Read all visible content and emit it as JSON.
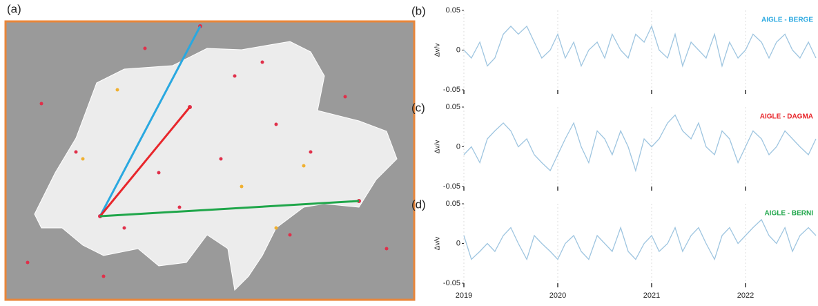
{
  "map": {
    "label": "(a)"
  },
  "chart_data": [
    {
      "type": "line",
      "panel": "(b)",
      "ylabel": "Δv/v",
      "ylim": [
        -0.05,
        0.05
      ],
      "yticks": [
        0.05,
        0,
        -0.05
      ],
      "xlim": [
        2019,
        2022.75
      ],
      "xticks": [
        2019,
        2020,
        2021,
        2022
      ],
      "xtick_labels": false,
      "grid": true,
      "x": [
        2019,
        2019.08,
        2019.17,
        2019.25,
        2019.33,
        2019.42,
        2019.5,
        2019.58,
        2019.67,
        2019.75,
        2019.83,
        2019.92,
        2020,
        2020.08,
        2020.17,
        2020.25,
        2020.33,
        2020.42,
        2020.5,
        2020.58,
        2020.67,
        2020.75,
        2020.83,
        2020.92,
        2021,
        2021.08,
        2021.17,
        2021.25,
        2021.33,
        2021.42,
        2021.5,
        2021.58,
        2021.67,
        2021.75,
        2021.83,
        2021.92,
        2022,
        2022.08,
        2022.17,
        2022.25,
        2022.33,
        2022.42,
        2022.5,
        2022.58,
        2022.67,
        2022.75
      ],
      "series": [
        {
          "name": "AIGLE - BERGE",
          "color": "#9ec5e0",
          "label_color": "#29a8e0",
          "values": [
            0.0,
            -0.01,
            0.01,
            -0.02,
            -0.01,
            0.02,
            0.03,
            0.02,
            0.03,
            0.01,
            -0.01,
            0.0,
            0.02,
            -0.01,
            0.01,
            -0.02,
            0.0,
            0.01,
            -0.01,
            0.02,
            0.0,
            -0.01,
            0.02,
            0.01,
            0.03,
            0.0,
            -0.01,
            0.02,
            -0.02,
            0.01,
            0.0,
            -0.01,
            0.02,
            -0.02,
            0.01,
            -0.01,
            0.0,
            0.02,
            0.01,
            -0.01,
            0.01,
            0.02,
            0.0,
            -0.01,
            0.01,
            -0.01
          ]
        }
      ]
    },
    {
      "type": "line",
      "panel": "(c)",
      "ylabel": "Δv/v",
      "ylim": [
        -0.05,
        0.05
      ],
      "yticks": [
        0.05,
        0,
        -0.05
      ],
      "xlim": [
        2019,
        2022.75
      ],
      "xticks": [
        2019,
        2020,
        2021,
        2022
      ],
      "xtick_labels": false,
      "grid": true,
      "x": [
        2019,
        2019.08,
        2019.17,
        2019.25,
        2019.33,
        2019.42,
        2019.5,
        2019.58,
        2019.67,
        2019.75,
        2019.83,
        2019.92,
        2020,
        2020.08,
        2020.17,
        2020.25,
        2020.33,
        2020.42,
        2020.5,
        2020.58,
        2020.67,
        2020.75,
        2020.83,
        2020.92,
        2021,
        2021.08,
        2021.17,
        2021.25,
        2021.33,
        2021.42,
        2021.5,
        2021.58,
        2021.67,
        2021.75,
        2021.83,
        2021.92,
        2022,
        2022.08,
        2022.17,
        2022.25,
        2022.33,
        2022.42,
        2022.5,
        2022.58,
        2022.67,
        2022.75
      ],
      "series": [
        {
          "name": "AIGLE - DAGMA",
          "color": "#9ec5e0",
          "label_color": "#e8262b",
          "values": [
            -0.01,
            0.0,
            -0.02,
            0.01,
            0.02,
            0.03,
            0.02,
            0.0,
            0.01,
            -0.01,
            -0.02,
            -0.03,
            -0.01,
            0.01,
            0.03,
            0.0,
            -0.02,
            0.02,
            0.01,
            -0.01,
            0.02,
            0.0,
            -0.03,
            0.01,
            0.0,
            0.01,
            0.03,
            0.04,
            0.02,
            0.01,
            0.03,
            0.0,
            -0.01,
            0.02,
            0.01,
            -0.02,
            0.0,
            0.02,
            0.01,
            -0.01,
            0.0,
            0.02,
            0.01,
            0.0,
            -0.01,
            0.01
          ]
        }
      ]
    },
    {
      "type": "line",
      "panel": "(d)",
      "ylabel": "Δv/v",
      "ylim": [
        -0.05,
        0.05
      ],
      "yticks": [
        0.05,
        0,
        -0.05
      ],
      "xlim": [
        2019,
        2022.75
      ],
      "xticks": [
        2019,
        2020,
        2021,
        2022
      ],
      "xtick_labels": true,
      "grid": true,
      "x": [
        2019,
        2019.08,
        2019.17,
        2019.25,
        2019.33,
        2019.42,
        2019.5,
        2019.58,
        2019.67,
        2019.75,
        2019.83,
        2019.92,
        2020,
        2020.08,
        2020.17,
        2020.25,
        2020.33,
        2020.42,
        2020.5,
        2020.58,
        2020.67,
        2020.75,
        2020.83,
        2020.92,
        2021,
        2021.08,
        2021.17,
        2021.25,
        2021.33,
        2021.42,
        2021.5,
        2021.58,
        2021.67,
        2021.75,
        2021.83,
        2021.92,
        2022,
        2022.08,
        2022.17,
        2022.25,
        2022.33,
        2022.42,
        2022.5,
        2022.58,
        2022.67,
        2022.75
      ],
      "series": [
        {
          "name": "AIGLE - BERNI",
          "color": "#9ec5e0",
          "label_color": "#1fa64a",
          "values": [
            0.01,
            -0.02,
            -0.01,
            0.0,
            -0.01,
            0.01,
            0.02,
            0.0,
            -0.02,
            0.01,
            0.0,
            -0.01,
            -0.02,
            0.0,
            0.01,
            -0.01,
            -0.02,
            0.01,
            0.0,
            -0.01,
            0.02,
            -0.01,
            -0.02,
            0.0,
            0.01,
            -0.01,
            0.0,
            0.02,
            -0.01,
            0.01,
            0.02,
            0.0,
            -0.02,
            0.01,
            0.02,
            0.0,
            0.01,
            0.02,
            0.03,
            0.01,
            0.0,
            0.02,
            -0.01,
            0.01,
            0.02,
            0.01
          ]
        }
      ]
    }
  ]
}
